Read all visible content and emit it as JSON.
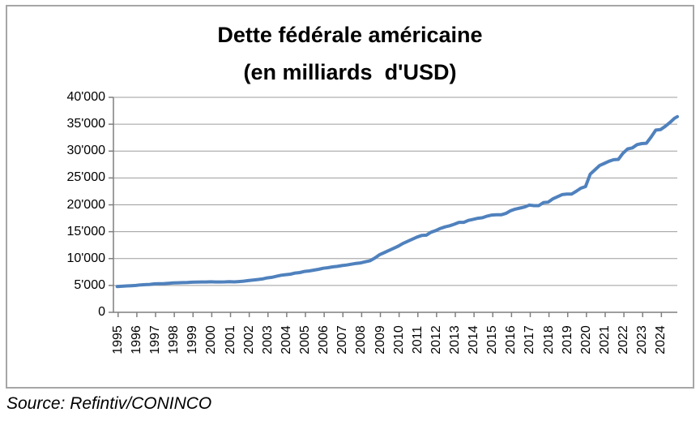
{
  "chart_data": {
    "type": "line",
    "title": "Dette fédérale américaine",
    "subtitle": "(en milliards  d'USD)",
    "source": "Source: Refintiv/CONINCO",
    "xlabel": "",
    "ylabel": "",
    "ylim": [
      0,
      40000
    ],
    "xlim_years": [
      1995,
      2025
    ],
    "grid": "horizontal",
    "legend": "none",
    "colors": {
      "line": "#4F81BD",
      "grid": "#9D9D9D",
      "axis": "#7F7F7F",
      "border": "#A6A6A6",
      "background": "#FFFFFF",
      "text": "#000000"
    },
    "y_ticks": [
      {
        "value": 0,
        "label": "0"
      },
      {
        "value": 5000,
        "label": "5'000"
      },
      {
        "value": 10000,
        "label": "10'000"
      },
      {
        "value": 15000,
        "label": "15'000"
      },
      {
        "value": 20000,
        "label": "20'000"
      },
      {
        "value": 25000,
        "label": "25'000"
      },
      {
        "value": 30000,
        "label": "30'000"
      },
      {
        "value": 35000,
        "label": "35'000"
      },
      {
        "value": 40000,
        "label": "40'000"
      }
    ],
    "x_tick_years": [
      "1995",
      "1996",
      "1997",
      "1998",
      "1999",
      "2000",
      "2001",
      "2002",
      "2003",
      "2004",
      "2005",
      "2006",
      "2007",
      "2008",
      "2009",
      "2010",
      "2011",
      "2012",
      "2013",
      "2014",
      "2015",
      "2016",
      "2017",
      "2018",
      "2019",
      "2020",
      "2021",
      "2022",
      "2023",
      "2024"
    ],
    "series": [
      {
        "name": "Dette fédérale américaine (milliards USD)",
        "points": [
          [
            1995.0,
            4800
          ],
          [
            1995.25,
            4850
          ],
          [
            1995.5,
            4900
          ],
          [
            1995.75,
            4950
          ],
          [
            1996.0,
            5000
          ],
          [
            1996.25,
            5100
          ],
          [
            1996.5,
            5150
          ],
          [
            1996.75,
            5200
          ],
          [
            1997.0,
            5300
          ],
          [
            1997.25,
            5320
          ],
          [
            1997.5,
            5350
          ],
          [
            1997.75,
            5410
          ],
          [
            1998.0,
            5480
          ],
          [
            1998.25,
            5500
          ],
          [
            1998.5,
            5520
          ],
          [
            1998.75,
            5540
          ],
          [
            1999.0,
            5600
          ],
          [
            1999.25,
            5610
          ],
          [
            1999.5,
            5640
          ],
          [
            1999.75,
            5650
          ],
          [
            2000.0,
            5680
          ],
          [
            2000.25,
            5650
          ],
          [
            2000.5,
            5650
          ],
          [
            2000.75,
            5660
          ],
          [
            2001.0,
            5700
          ],
          [
            2001.25,
            5660
          ],
          [
            2001.5,
            5720
          ],
          [
            2001.75,
            5800
          ],
          [
            2002.0,
            5900
          ],
          [
            2002.25,
            6000
          ],
          [
            2002.5,
            6100
          ],
          [
            2002.75,
            6200
          ],
          [
            2003.0,
            6400
          ],
          [
            2003.25,
            6500
          ],
          [
            2003.5,
            6700
          ],
          [
            2003.75,
            6900
          ],
          [
            2004.0,
            7000
          ],
          [
            2004.25,
            7100
          ],
          [
            2004.5,
            7300
          ],
          [
            2004.75,
            7400
          ],
          [
            2005.0,
            7600
          ],
          [
            2005.25,
            7700
          ],
          [
            2005.5,
            7850
          ],
          [
            2005.75,
            8000
          ],
          [
            2006.0,
            8200
          ],
          [
            2006.25,
            8300
          ],
          [
            2006.5,
            8450
          ],
          [
            2006.75,
            8550
          ],
          [
            2007.0,
            8700
          ],
          [
            2007.25,
            8800
          ],
          [
            2007.5,
            8950
          ],
          [
            2007.75,
            9100
          ],
          [
            2008.0,
            9200
          ],
          [
            2008.25,
            9400
          ],
          [
            2008.5,
            9600
          ],
          [
            2008.75,
            10100
          ],
          [
            2009.0,
            10700
          ],
          [
            2009.25,
            11100
          ],
          [
            2009.5,
            11500
          ],
          [
            2009.75,
            11900
          ],
          [
            2010.0,
            12300
          ],
          [
            2010.25,
            12800
          ],
          [
            2010.5,
            13200
          ],
          [
            2010.75,
            13600
          ],
          [
            2011.0,
            14000
          ],
          [
            2011.25,
            14300
          ],
          [
            2011.5,
            14350
          ],
          [
            2011.75,
            14900
          ],
          [
            2012.0,
            15200
          ],
          [
            2012.25,
            15600
          ],
          [
            2012.5,
            15900
          ],
          [
            2012.75,
            16100
          ],
          [
            2013.0,
            16400
          ],
          [
            2013.25,
            16740
          ],
          [
            2013.5,
            16740
          ],
          [
            2013.75,
            17100
          ],
          [
            2014.0,
            17300
          ],
          [
            2014.25,
            17500
          ],
          [
            2014.5,
            17600
          ],
          [
            2014.75,
            17900
          ],
          [
            2015.0,
            18100
          ],
          [
            2015.25,
            18150
          ],
          [
            2015.5,
            18150
          ],
          [
            2015.75,
            18400
          ],
          [
            2016.0,
            18900
          ],
          [
            2016.25,
            19200
          ],
          [
            2016.5,
            19400
          ],
          [
            2016.75,
            19600
          ],
          [
            2017.0,
            19950
          ],
          [
            2017.25,
            19850
          ],
          [
            2017.5,
            19850
          ],
          [
            2017.75,
            20400
          ],
          [
            2018.0,
            20500
          ],
          [
            2018.25,
            21100
          ],
          [
            2018.5,
            21500
          ],
          [
            2018.75,
            21900
          ],
          [
            2019.0,
            22000
          ],
          [
            2019.25,
            22000
          ],
          [
            2019.5,
            22500
          ],
          [
            2019.75,
            23100
          ],
          [
            2020.0,
            23400
          ],
          [
            2020.25,
            25700
          ],
          [
            2020.5,
            26500
          ],
          [
            2020.75,
            27300
          ],
          [
            2021.0,
            27700
          ],
          [
            2021.25,
            28100
          ],
          [
            2021.5,
            28400
          ],
          [
            2021.75,
            28450
          ],
          [
            2022.0,
            29600
          ],
          [
            2022.25,
            30400
          ],
          [
            2022.5,
            30600
          ],
          [
            2022.75,
            31200
          ],
          [
            2023.0,
            31400
          ],
          [
            2023.25,
            31450
          ],
          [
            2023.5,
            32600
          ],
          [
            2023.75,
            33900
          ],
          [
            2024.0,
            34000
          ],
          [
            2024.25,
            34600
          ],
          [
            2024.5,
            35300
          ],
          [
            2024.75,
            36100
          ],
          [
            2024.9,
            36400
          ]
        ]
      }
    ]
  }
}
